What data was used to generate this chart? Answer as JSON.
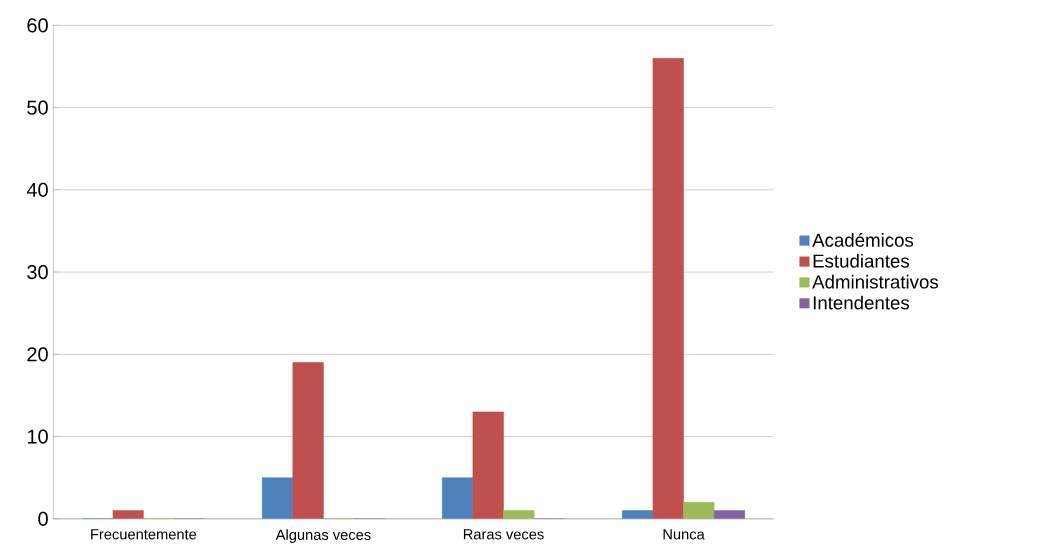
{
  "chart_data": {
    "type": "bar",
    "categories": [
      "Frecuentemente",
      "Algunas veces",
      "Raras veces",
      "Nunca"
    ],
    "series": [
      {
        "name": "Académicos",
        "color": "#4f81bd",
        "values": [
          0,
          5,
          5,
          1
        ]
      },
      {
        "name": "Estudiantes",
        "color": "#c0504d",
        "values": [
          1,
          19,
          13,
          56
        ]
      },
      {
        "name": "Administrativos",
        "color": "#9bbb59",
        "values": [
          0,
          0,
          1,
          2
        ]
      },
      {
        "name": "Intendentes",
        "color": "#8064a2",
        "values": [
          0,
          0,
          0,
          1
        ]
      }
    ],
    "ylim": [
      0,
      60
    ],
    "yticks": [
      0,
      10,
      20,
      30,
      40,
      50,
      60
    ],
    "grid": "y",
    "legend": "right"
  }
}
